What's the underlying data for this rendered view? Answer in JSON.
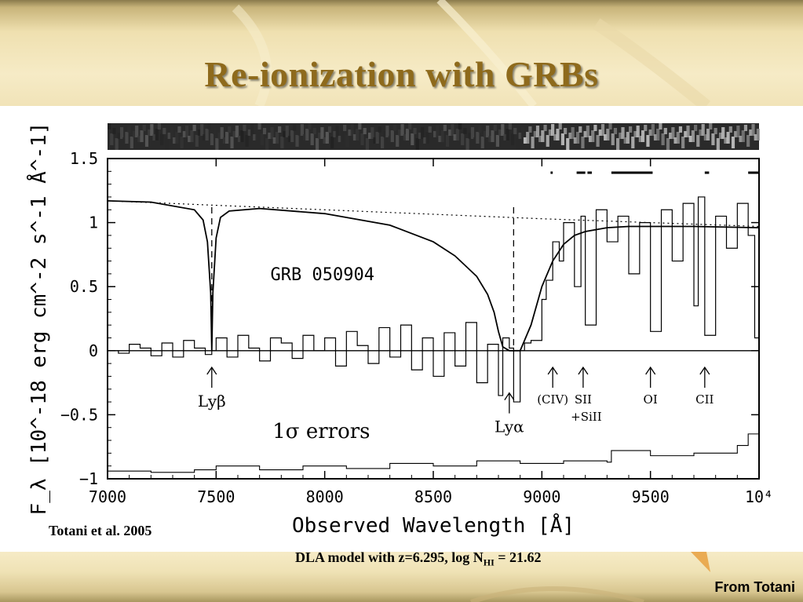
{
  "slide": {
    "title": "Re-ionization with GRBs",
    "citation": "Totani et al. 2005",
    "caption_main": "DLA model with z=6.295,  log N",
    "caption_sub": "HI",
    "caption_end": " = 21.62",
    "credit": "From Totani"
  },
  "chart_data": {
    "type": "line",
    "title": "GRB 050904",
    "xlabel": "Observed Wavelength [Å]",
    "ylabel": "F_λ [10^-18 erg cm^-2 s^-1 Å^-1]",
    "xlim": [
      7000,
      10000
    ],
    "ylim": [
      -1,
      1.5
    ],
    "x_ticks": [
      "7000",
      "7500",
      "8000",
      "8500",
      "9000",
      "9500",
      "10⁴"
    ],
    "y_ticks": [
      "1.5",
      "1",
      "0.5",
      "0",
      "−0.5",
      "−1"
    ],
    "series": [
      {
        "kind": "dla-model",
        "x": [
          7000,
          7200,
          7400,
          7440,
          7460,
          7475,
          7480,
          7485,
          7500,
          7520,
          7560,
          7700,
          8000,
          8300,
          8500,
          8600,
          8700,
          8750,
          8780,
          8800,
          8820,
          8850,
          8880,
          8900,
          8950,
          9000,
          9050,
          9100,
          9150,
          9200,
          9300,
          9400,
          9500,
          9700,
          10000
        ],
        "y": [
          1.17,
          1.16,
          1.1,
          1.02,
          0.85,
          0.45,
          0.0,
          0.45,
          0.88,
          1.04,
          1.09,
          1.11,
          1.07,
          0.98,
          0.85,
          0.74,
          0.58,
          0.44,
          0.3,
          0.15,
          0.03,
          0.0,
          0.0,
          0.0,
          0.2,
          0.5,
          0.7,
          0.83,
          0.9,
          0.93,
          0.96,
          0.97,
          0.97,
          0.97,
          0.96
        ]
      },
      {
        "kind": "continuum",
        "x": [
          7000,
          8000,
          9000,
          10000
        ],
        "y": [
          1.17,
          1.1,
          1.03,
          0.97
        ]
      },
      {
        "kind": "spectrum",
        "x": [
          7000,
          7050,
          7100,
          7150,
          7200,
          7250,
          7300,
          7350,
          7400,
          7450,
          7480,
          7500,
          7550,
          7600,
          7650,
          7700,
          7750,
          7800,
          7850,
          7900,
          7950,
          8000,
          8050,
          8100,
          8150,
          8200,
          8250,
          8300,
          8350,
          8400,
          8450,
          8500,
          8550,
          8600,
          8650,
          8700,
          8750,
          8800,
          8820,
          8850,
          8870,
          8900,
          8920,
          8950,
          9000,
          9020,
          9050,
          9080,
          9100,
          9150,
          9180,
          9200,
          9250,
          9300,
          9350,
          9400,
          9450,
          9500,
          9550,
          9600,
          9650,
          9700,
          9720,
          9750,
          9800,
          9850,
          9900,
          9950,
          9980,
          10000
        ],
        "y": [
          0.0,
          -0.02,
          0.05,
          0.02,
          -0.04,
          0.06,
          -0.05,
          0.08,
          0.02,
          -0.03,
          0.0,
          0.1,
          -0.05,
          0.12,
          0.02,
          -0.08,
          0.1,
          0.06,
          -0.06,
          0.12,
          0.0,
          0.1,
          -0.12,
          0.15,
          0.04,
          -0.1,
          0.18,
          -0.05,
          0.2,
          -0.15,
          0.1,
          -0.2,
          0.14,
          -0.12,
          0.22,
          -0.25,
          0.05,
          -0.35,
          0.1,
          0.02,
          -0.4,
          0.0,
          0.06,
          0.08,
          0.4,
          0.55,
          0.85,
          0.7,
          1.0,
          0.5,
          1.05,
          0.2,
          1.1,
          0.85,
          1.05,
          0.6,
          1.0,
          0.15,
          1.1,
          0.7,
          1.15,
          0.35,
          1.2,
          0.12,
          1.05,
          0.8,
          1.15,
          0.9,
          0.1,
          0.6
        ]
      },
      {
        "kind": "1sigma-errors",
        "x": [
          7000,
          7200,
          7400,
          7500,
          7700,
          7900,
          8100,
          8300,
          8500,
          8700,
          8900,
          9100,
          9300,
          9320,
          9500,
          9700,
          9900,
          9950,
          10000
        ],
        "y": [
          -0.94,
          -0.95,
          -0.93,
          -0.9,
          -0.93,
          -0.9,
          -0.92,
          -0.88,
          -0.9,
          -0.86,
          -0.88,
          -0.86,
          -0.87,
          -0.78,
          -0.82,
          -0.8,
          -0.74,
          -0.65,
          -0.7
        ]
      }
    ],
    "annotations": [
      {
        "label": "Lyβ",
        "x": 7480
      },
      {
        "label": "Lyα",
        "x": 8850
      },
      {
        "label": "(CIV)",
        "x": 9050
      },
      {
        "label": "SII",
        "sublabel": "+SiII",
        "x": 9190
      },
      {
        "label": "OI",
        "x": 9500
      },
      {
        "label": "CII",
        "x": 9750
      }
    ],
    "series_text": "1σ errors",
    "grb_label": "GRB 050904"
  }
}
